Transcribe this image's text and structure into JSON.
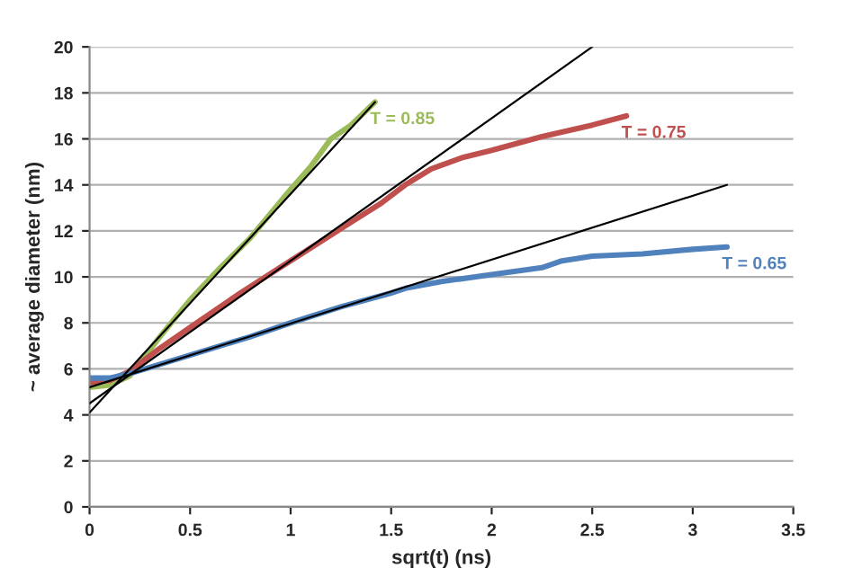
{
  "chart_data": {
    "type": "line",
    "xlabel": "sqrt(t) (ns)",
    "ylabel": "~ average diameter (nm)",
    "xlim": [
      0,
      3.5
    ],
    "xticks": [
      0,
      0.5,
      1,
      1.5,
      2,
      2.5,
      3,
      3.5
    ],
    "ylim": [
      0,
      20
    ],
    "yticks": [
      0,
      2,
      4,
      6,
      8,
      10,
      12,
      14,
      16,
      18,
      20
    ],
    "grid": "y",
    "marker": "none",
    "line_style": "solid",
    "series": [
      {
        "color": "#9bbb59",
        "x": [
          0,
          0.1,
          0.2,
          0.35,
          0.5,
          0.65,
          0.8,
          1.0,
          1.1,
          1.2,
          1.3,
          1.42
        ],
        "values": [
          5.2,
          5.3,
          5.7,
          7.4,
          9.0,
          10.4,
          11.7,
          13.8,
          14.8,
          16.0,
          16.6,
          17.6
        ]
      },
      {
        "color": "#c0504d",
        "x": [
          0,
          0.1,
          0.2,
          0.35,
          0.5,
          0.75,
          1.0,
          1.25,
          1.45,
          1.57,
          1.7,
          1.86,
          2.0,
          2.25,
          2.5,
          2.67
        ],
        "values": [
          5.4,
          5.5,
          5.9,
          6.9,
          7.8,
          9.3,
          10.7,
          12.1,
          13.2,
          14.0,
          14.7,
          15.2,
          15.5,
          16.1,
          16.6,
          17.0
        ]
      },
      {
        "color": "#4f81bd",
        "x": [
          0,
          0.1,
          0.2,
          0.35,
          0.5,
          0.8,
          1.0,
          1.25,
          1.5,
          1.57,
          1.75,
          2.0,
          2.25,
          2.35,
          2.5,
          2.75,
          3.0,
          3.17
        ],
        "values": [
          5.6,
          5.6,
          5.8,
          6.2,
          6.6,
          7.4,
          8.0,
          8.7,
          9.3,
          9.5,
          9.8,
          10.1,
          10.4,
          10.7,
          10.9,
          11.0,
          11.2,
          11.3
        ]
      },
      {
        "color": "#000000",
        "x": [
          0,
          1.42
        ],
        "values": [
          4.1,
          17.6
        ]
      },
      {
        "color": "#000000",
        "x": [
          0,
          2.5
        ],
        "values": [
          4.5,
          20
        ]
      },
      {
        "color": "#000000",
        "x": [
          0,
          3.17
        ],
        "values": [
          5.2,
          14.0
        ]
      }
    ],
    "annotations": [
      {
        "text": "T = 0.85",
        "x": 1.42,
        "y": 17.6
      },
      {
        "text": "T = 0.75",
        "x": 2.67,
        "y": 17.0
      },
      {
        "text": "T = 0.65",
        "x": 3.17,
        "y": 11.3
      }
    ]
  }
}
